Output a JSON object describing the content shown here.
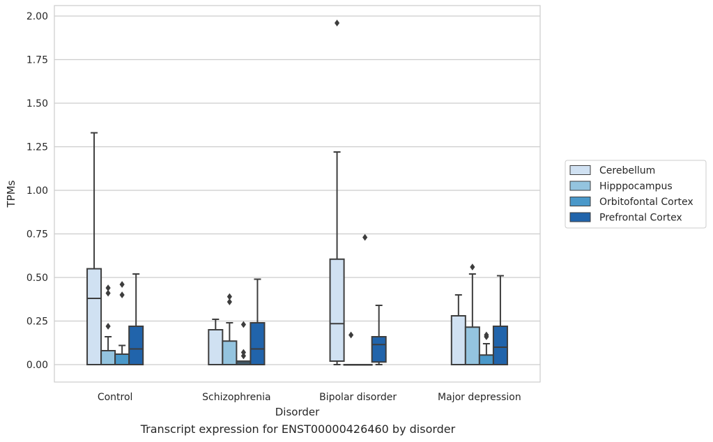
{
  "caption": "Transcript expression for ENST00000426460 by disorder",
  "chart_data": {
    "type": "box",
    "xlabel": "Disorder",
    "ylabel": "TPMs",
    "ylim": [
      -0.1,
      2.06
    ],
    "yticks": [
      "0.00",
      "0.25",
      "0.50",
      "0.75",
      "1.00",
      "1.25",
      "1.50",
      "1.75",
      "2.00"
    ],
    "grid": "horizontal",
    "legend_position": "right",
    "categories": [
      "Control",
      "Schizophrenia",
      "Bipolar disorder",
      "Major depression"
    ],
    "series": [
      {
        "name": "Cerebellum",
        "color": "#d0e1f2",
        "boxes": [
          {
            "min": 0.0,
            "q1": 0.0,
            "median": 0.38,
            "q3": 0.55,
            "max": 1.33,
            "outliers": []
          },
          {
            "min": 0.0,
            "q1": 0.0,
            "median": 0.0,
            "q3": 0.2,
            "max": 0.26,
            "outliers": []
          },
          {
            "min": 0.0,
            "q1": 0.02,
            "median": 0.235,
            "q3": 0.605,
            "max": 1.22,
            "outliers": [
              1.96
            ]
          },
          {
            "min": 0.0,
            "q1": 0.0,
            "median": 0.0,
            "q3": 0.28,
            "max": 0.4,
            "outliers": []
          }
        ]
      },
      {
        "name": "Hipppocampus",
        "color": "#94c4df",
        "boxes": [
          {
            "min": 0.0,
            "q1": 0.0,
            "median": 0.0,
            "q3": 0.08,
            "max": 0.16,
            "outliers": [
              0.22,
              0.41,
              0.44
            ]
          },
          {
            "min": 0.0,
            "q1": 0.0,
            "median": 0.0,
            "q3": 0.135,
            "max": 0.24,
            "outliers": [
              0.36,
              0.39
            ]
          },
          {
            "min": 0.0,
            "q1": 0.0,
            "median": 0.0,
            "q3": 0.0,
            "max": 0.0,
            "outliers": [
              0.17
            ]
          },
          {
            "min": 0.0,
            "q1": 0.0,
            "median": 0.0,
            "q3": 0.215,
            "max": 0.52,
            "outliers": [
              0.56
            ]
          }
        ]
      },
      {
        "name": "Orbitofontal Cortex",
        "color": "#4a98c9",
        "boxes": [
          {
            "min": 0.0,
            "q1": 0.0,
            "median": 0.0,
            "q3": 0.06,
            "max": 0.11,
            "outliers": [
              0.4,
              0.46
            ]
          },
          {
            "min": 0.0,
            "q1": 0.0,
            "median": 0.01,
            "q3": 0.02,
            "max": 0.02,
            "outliers": [
              0.05,
              0.07,
              0.23
            ]
          },
          {
            "min": 0.0,
            "q1": 0.0,
            "median": 0.0,
            "q3": 0.0,
            "max": 0.0,
            "outliers": [
              0.73
            ]
          },
          {
            "min": 0.0,
            "q1": 0.0,
            "median": 0.0,
            "q3": 0.055,
            "max": 0.12,
            "outliers": [
              0.16,
              0.17
            ]
          }
        ]
      },
      {
        "name": "Prefrontal Cortex",
        "color": "#2164ab",
        "boxes": [
          {
            "min": 0.0,
            "q1": 0.0,
            "median": 0.09,
            "q3": 0.22,
            "max": 0.52,
            "outliers": []
          },
          {
            "min": 0.0,
            "q1": 0.0,
            "median": 0.09,
            "q3": 0.24,
            "max": 0.49,
            "outliers": []
          },
          {
            "min": 0.0,
            "q1": 0.015,
            "median": 0.115,
            "q3": 0.16,
            "max": 0.34,
            "outliers": []
          },
          {
            "min": 0.0,
            "q1": 0.0,
            "median": 0.1,
            "q3": 0.22,
            "max": 0.51,
            "outliers": []
          }
        ]
      }
    ]
  }
}
